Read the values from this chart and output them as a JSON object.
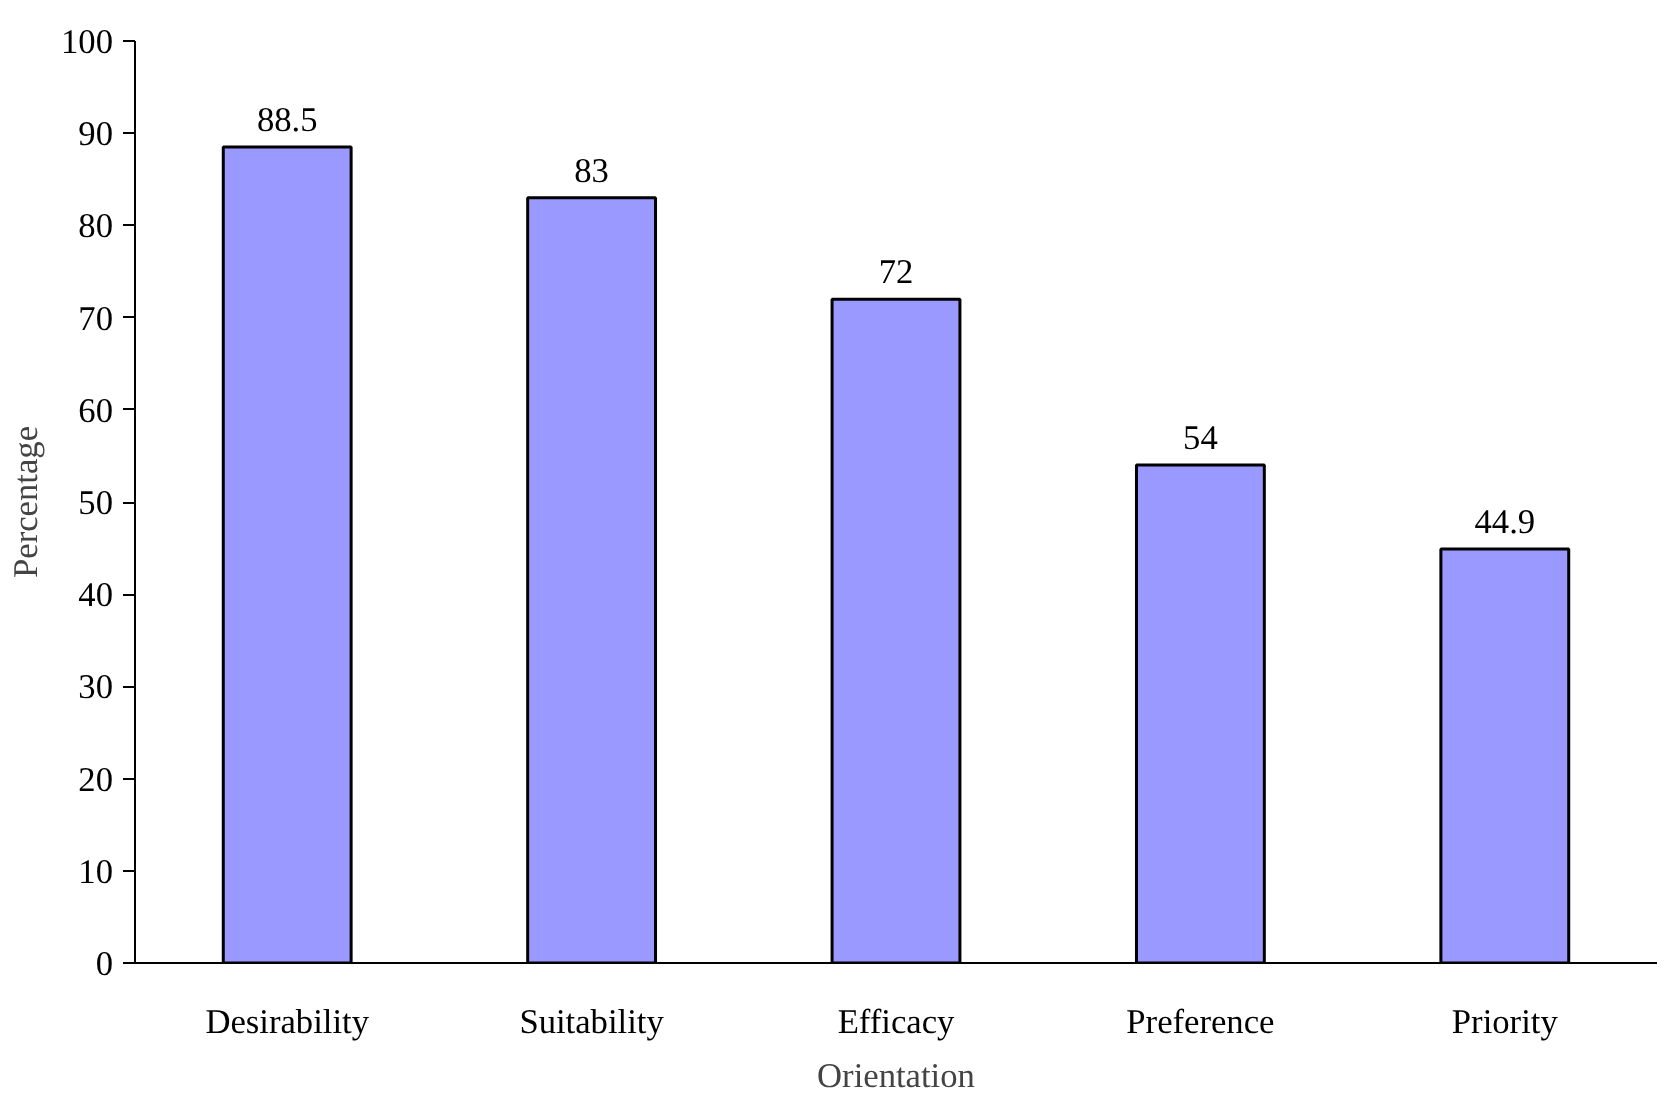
{
  "chart_data": {
    "type": "bar",
    "xlabel": "Orientation",
    "ylabel": "Percentage",
    "categories": [
      "Desirability",
      "Suitability",
      "Efficacy",
      "Preference",
      "Priority"
    ],
    "values": [
      88.5,
      83,
      72,
      54,
      44.9
    ],
    "color": "#9999ff",
    "ylim": [
      0,
      100
    ],
    "yticks": [
      0,
      10,
      20,
      30,
      40,
      50,
      60,
      70,
      80,
      90,
      100
    ],
    "data_labels": true
  }
}
